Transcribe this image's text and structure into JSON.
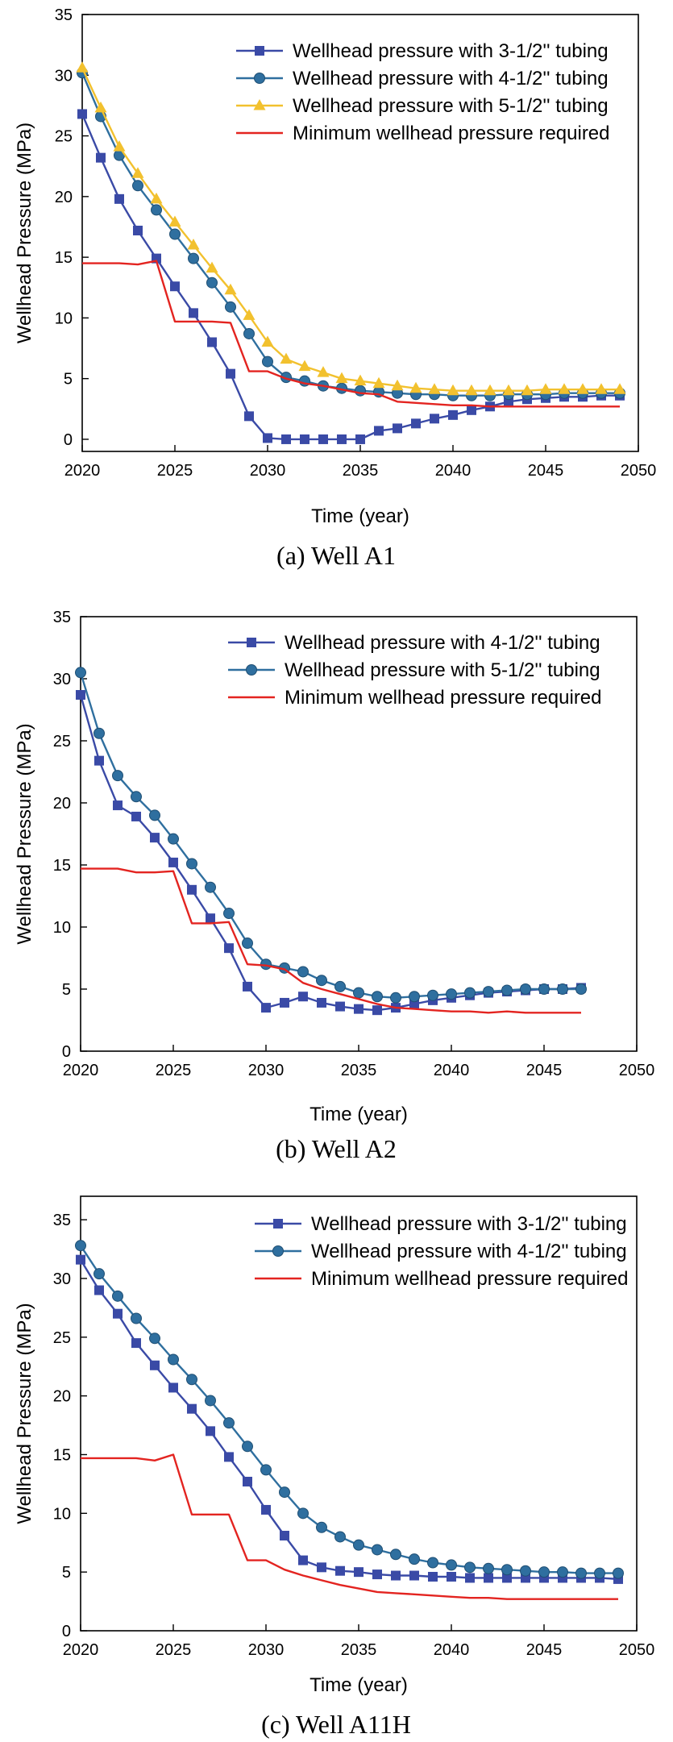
{
  "chart_data": [
    {
      "type": "line",
      "caption": "(a)  Well A1",
      "xlabel": "Time (year)",
      "ylabel": "Wellhead Pressure (MPa)",
      "xlim": [
        2020,
        2050
      ],
      "ylim": [
        -1,
        35
      ],
      "xticks": [
        2020,
        2025,
        2030,
        2035,
        2040,
        2045,
        2050
      ],
      "yticks": [
        0,
        5,
        10,
        15,
        20,
        25,
        30,
        35
      ],
      "legend_position": "top-right",
      "series": [
        {
          "name": "Wellhead pressure with 3-1/2'' tubing",
          "color": "#3a4aa6",
          "marker": "square",
          "x": [
            2020,
            2021,
            2022,
            2023,
            2024,
            2025,
            2026,
            2027,
            2028,
            2029,
            2030,
            2031,
            2032,
            2033,
            2034,
            2035,
            2036,
            2037,
            2038,
            2039,
            2040,
            2041,
            2042,
            2043,
            2044,
            2045,
            2046,
            2047,
            2048,
            2049
          ],
          "y": [
            26.8,
            23.2,
            19.8,
            17.2,
            14.9,
            12.6,
            10.4,
            8.0,
            5.4,
            1.9,
            0.1,
            0.0,
            0.0,
            0.0,
            0.0,
            0.0,
            0.7,
            0.9,
            1.3,
            1.7,
            2.0,
            2.4,
            2.7,
            3.1,
            3.3,
            3.4,
            3.5,
            3.5,
            3.6,
            3.6
          ]
        },
        {
          "name": "Wellhead pressure with 4-1/2'' tubing",
          "color": "#2f6f9f",
          "marker": "circle",
          "x": [
            2020,
            2021,
            2022,
            2023,
            2024,
            2025,
            2026,
            2027,
            2028,
            2029,
            2030,
            2031,
            2032,
            2033,
            2034,
            2035,
            2036,
            2037,
            2038,
            2039,
            2040,
            2041,
            2042,
            2043,
            2044,
            2045,
            2046,
            2047,
            2048,
            2049
          ],
          "y": [
            30.2,
            26.6,
            23.4,
            20.9,
            18.9,
            16.9,
            14.9,
            12.9,
            10.9,
            8.7,
            6.4,
            5.1,
            4.8,
            4.4,
            4.2,
            4.0,
            3.9,
            3.8,
            3.7,
            3.7,
            3.6,
            3.6,
            3.6,
            3.7,
            3.7,
            3.7,
            3.8,
            3.8,
            3.8,
            3.8
          ]
        },
        {
          "name": "Wellhead pressure with 5-1/2'' tubing",
          "color": "#f2c12e",
          "marker": "triangle",
          "x": [
            2020,
            2021,
            2022,
            2023,
            2024,
            2025,
            2026,
            2027,
            2028,
            2029,
            2030,
            2031,
            2032,
            2033,
            2034,
            2035,
            2036,
            2037,
            2038,
            2039,
            2040,
            2041,
            2042,
            2043,
            2044,
            2045,
            2046,
            2047,
            2048,
            2049
          ],
          "y": [
            30.6,
            27.3,
            24.1,
            21.9,
            19.8,
            17.9,
            16.0,
            14.1,
            12.3,
            10.2,
            8.0,
            6.6,
            6.0,
            5.5,
            5.0,
            4.8,
            4.6,
            4.4,
            4.2,
            4.1,
            4.0,
            4.0,
            4.0,
            4.0,
            4.0,
            4.1,
            4.1,
            4.1,
            4.1,
            4.1
          ]
        },
        {
          "name": "Minimum wellhead pressure required",
          "color": "#e32420",
          "marker": "none",
          "x": [
            2020,
            2021,
            2022,
            2023,
            2024,
            2025,
            2026,
            2027,
            2028,
            2029,
            2030,
            2031,
            2032,
            2033,
            2034,
            2035,
            2036,
            2037,
            2038,
            2039,
            2040,
            2041,
            2042,
            2043,
            2044,
            2045,
            2046,
            2047,
            2048,
            2049
          ],
          "y": [
            14.5,
            14.5,
            14.5,
            14.4,
            14.7,
            9.7,
            9.7,
            9.7,
            9.6,
            5.6,
            5.6,
            5.0,
            4.6,
            4.4,
            4.1,
            3.8,
            3.7,
            3.1,
            3.0,
            2.9,
            2.8,
            2.8,
            2.7,
            2.7,
            2.7,
            2.7,
            2.7,
            2.7,
            2.7,
            2.7
          ]
        }
      ]
    },
    {
      "type": "line",
      "caption": "(b)  Well A2",
      "xlabel": "Time (year)",
      "ylabel": "Wellhead Pressure (MPa)",
      "xlim": [
        2020,
        2050
      ],
      "ylim": [
        0,
        35
      ],
      "xticks": [
        2020,
        2025,
        2030,
        2035,
        2040,
        2045,
        2050
      ],
      "yticks": [
        0,
        5,
        10,
        15,
        20,
        25,
        30,
        35
      ],
      "legend_position": "top-right",
      "series": [
        {
          "name": "Wellhead pressure with 4-1/2'' tubing",
          "color": "#3a4aa6",
          "marker": "square",
          "x": [
            2020,
            2021,
            2022,
            2023,
            2024,
            2025,
            2026,
            2027,
            2028,
            2029,
            2030,
            2031,
            2032,
            2033,
            2034,
            2035,
            2036,
            2037,
            2038,
            2039,
            2040,
            2041,
            2042,
            2043,
            2044,
            2045,
            2046,
            2047
          ],
          "y": [
            28.7,
            23.4,
            19.8,
            18.9,
            17.2,
            15.2,
            13.0,
            10.7,
            8.3,
            5.2,
            3.5,
            3.9,
            4.4,
            3.9,
            3.6,
            3.4,
            3.3,
            3.5,
            3.8,
            4.1,
            4.3,
            4.5,
            4.7,
            4.8,
            4.9,
            5.0,
            5.0,
            5.1
          ]
        },
        {
          "name": "Wellhead pressure with 5-1/2'' tubing",
          "color": "#2f6f9f",
          "marker": "circle",
          "x": [
            2020,
            2021,
            2022,
            2023,
            2024,
            2025,
            2026,
            2027,
            2028,
            2029,
            2030,
            2031,
            2032,
            2033,
            2034,
            2035,
            2036,
            2037,
            2038,
            2039,
            2040,
            2041,
            2042,
            2043,
            2044,
            2045,
            2046,
            2047
          ],
          "y": [
            30.5,
            25.6,
            22.2,
            20.5,
            19.0,
            17.1,
            15.1,
            13.2,
            11.1,
            8.7,
            7.0,
            6.7,
            6.4,
            5.7,
            5.2,
            4.7,
            4.4,
            4.3,
            4.4,
            4.5,
            4.6,
            4.7,
            4.8,
            4.9,
            5.0,
            5.0,
            5.0,
            5.0
          ]
        },
        {
          "name": "Minimum wellhead pressure required",
          "color": "#e32420",
          "marker": "none",
          "x": [
            2020,
            2021,
            2022,
            2023,
            2024,
            2025,
            2026,
            2027,
            2028,
            2029,
            2030,
            2031,
            2032,
            2033,
            2034,
            2035,
            2036,
            2037,
            2038,
            2039,
            2040,
            2041,
            2042,
            2043,
            2044,
            2045,
            2046,
            2047
          ],
          "y": [
            14.7,
            14.7,
            14.7,
            14.4,
            14.4,
            14.5,
            10.3,
            10.3,
            10.4,
            7.0,
            6.9,
            6.6,
            5.5,
            5.0,
            4.6,
            4.2,
            3.8,
            3.5,
            3.4,
            3.3,
            3.2,
            3.2,
            3.1,
            3.2,
            3.1,
            3.1,
            3.1,
            3.1
          ]
        }
      ]
    },
    {
      "type": "line",
      "caption": "(c)  Well A11H",
      "xlabel": "Time (year)",
      "ylabel": "Wellhead Pressure (MPa)",
      "xlim": [
        2020,
        2050
      ],
      "ylim": [
        0,
        37
      ],
      "xticks": [
        2020,
        2025,
        2030,
        2035,
        2040,
        2045,
        2050
      ],
      "yticks": [
        0,
        5,
        10,
        15,
        20,
        25,
        30,
        35
      ],
      "legend_position": "top-right",
      "series": [
        {
          "name": "Wellhead pressure with 3-1/2'' tubing",
          "color": "#3a4aa6",
          "marker": "square",
          "x": [
            2020,
            2021,
            2022,
            2023,
            2024,
            2025,
            2026,
            2027,
            2028,
            2029,
            2030,
            2031,
            2032,
            2033,
            2034,
            2035,
            2036,
            2037,
            2038,
            2039,
            2040,
            2041,
            2042,
            2043,
            2044,
            2045,
            2046,
            2047,
            2048,
            2049
          ],
          "y": [
            31.6,
            29.0,
            27.0,
            24.5,
            22.6,
            20.7,
            18.9,
            17.0,
            14.8,
            12.7,
            10.3,
            8.1,
            6.0,
            5.4,
            5.1,
            5.0,
            4.8,
            4.7,
            4.7,
            4.6,
            4.6,
            4.5,
            4.5,
            4.5,
            4.5,
            4.5,
            4.5,
            4.5,
            4.5,
            4.4
          ]
        },
        {
          "name": "Wellhead pressure with 4-1/2'' tubing",
          "color": "#2f6f9f",
          "marker": "circle",
          "x": [
            2020,
            2021,
            2022,
            2023,
            2024,
            2025,
            2026,
            2027,
            2028,
            2029,
            2030,
            2031,
            2032,
            2033,
            2034,
            2035,
            2036,
            2037,
            2038,
            2039,
            2040,
            2041,
            2042,
            2043,
            2044,
            2045,
            2046,
            2047,
            2048,
            2049
          ],
          "y": [
            32.8,
            30.4,
            28.5,
            26.6,
            24.9,
            23.1,
            21.4,
            19.6,
            17.7,
            15.7,
            13.7,
            11.8,
            10.0,
            8.8,
            8.0,
            7.3,
            6.9,
            6.5,
            6.1,
            5.8,
            5.6,
            5.4,
            5.3,
            5.2,
            5.1,
            5.0,
            5.0,
            4.9,
            4.9,
            4.9
          ]
        },
        {
          "name": "Minimum wellhead pressure required",
          "color": "#e32420",
          "marker": "none",
          "x": [
            2020,
            2021,
            2022,
            2023,
            2024,
            2025,
            2026,
            2027,
            2028,
            2029,
            2030,
            2031,
            2032,
            2033,
            2034,
            2035,
            2036,
            2037,
            2038,
            2039,
            2040,
            2041,
            2042,
            2043,
            2044,
            2045,
            2046,
            2047,
            2048,
            2049
          ],
          "y": [
            14.7,
            14.7,
            14.7,
            14.7,
            14.5,
            15.0,
            9.9,
            9.9,
            9.9,
            6.0,
            6.0,
            5.2,
            4.7,
            4.3,
            3.9,
            3.6,
            3.3,
            3.2,
            3.1,
            3.0,
            2.9,
            2.8,
            2.8,
            2.7,
            2.7,
            2.7,
            2.7,
            2.7,
            2.7,
            2.7
          ]
        }
      ]
    }
  ]
}
